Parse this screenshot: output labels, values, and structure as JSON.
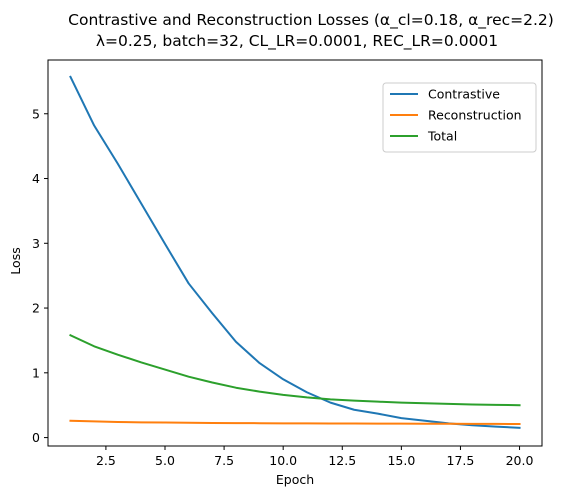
{
  "chart_data": {
    "type": "line",
    "title": "Contrastive and Reconstruction Losses (α_cl=0.18, α_rec=2.2)",
    "subtitle": "λ=0.25, batch=32, CL_LR=0.0001, REC_LR=0.0001",
    "xlabel": "Epoch",
    "ylabel": "Loss",
    "xlim": [
      0.05,
      20.95
    ],
    "ylim": [
      -0.13,
      5.83
    ],
    "xticks": [
      2.5,
      5.0,
      7.5,
      10.0,
      12.5,
      15.0,
      17.5,
      20.0
    ],
    "xtick_labels": [
      "2.5",
      "5.0",
      "7.5",
      "10.0",
      "12.5",
      "15.0",
      "17.5",
      "20.0"
    ],
    "yticks": [
      0,
      1,
      2,
      3,
      4,
      5
    ],
    "ytick_labels": [
      "0",
      "1",
      "2",
      "3",
      "4",
      "5"
    ],
    "grid": false,
    "legend_position": "top-right",
    "x": [
      1,
      2,
      3,
      4,
      5,
      6,
      7,
      8,
      9,
      10,
      11,
      12,
      13,
      14,
      15,
      16,
      17,
      18,
      19,
      20
    ],
    "series": [
      {
        "name": "Contrastive",
        "color": "#1f77b4",
        "values": [
          5.57,
          4.82,
          4.23,
          3.61,
          2.99,
          2.38,
          1.92,
          1.48,
          1.15,
          0.9,
          0.7,
          0.54,
          0.43,
          0.37,
          0.3,
          0.26,
          0.22,
          0.19,
          0.17,
          0.15
        ]
      },
      {
        "name": "Reconstruction",
        "color": "#ff7f0e",
        "values": [
          0.26,
          0.25,
          0.24,
          0.235,
          0.232,
          0.229,
          0.226,
          0.224,
          0.222,
          0.22,
          0.219,
          0.218,
          0.217,
          0.216,
          0.215,
          0.214,
          0.213,
          0.212,
          0.211,
          0.21
        ]
      },
      {
        "name": "Total",
        "color": "#2ca02c",
        "values": [
          1.58,
          1.41,
          1.28,
          1.16,
          1.05,
          0.94,
          0.85,
          0.77,
          0.71,
          0.66,
          0.62,
          0.59,
          0.57,
          0.555,
          0.54,
          0.53,
          0.52,
          0.51,
          0.505,
          0.5
        ]
      }
    ]
  }
}
